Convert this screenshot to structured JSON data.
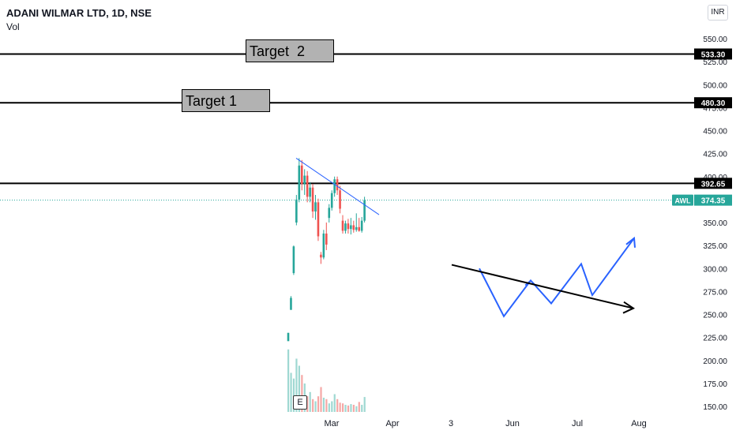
{
  "header": {
    "title": "ADANI WILMAR LTD, 1D, NSE",
    "volume_label": "Vol",
    "currency_button": "INR"
  },
  "annotations": {
    "target1_label": "Target 1",
    "target2_label": "Target  2",
    "earnings_badge": "E"
  },
  "colors": {
    "up": "#26a69a",
    "down": "#ef5350",
    "trendline": "#2962ff",
    "projection": "#2962ff",
    "level_line": "#000000",
    "current_price": "#26a69a"
  },
  "chart_data": {
    "type": "candlestick",
    "symbol": "AWL",
    "ylim": [
      150,
      550
    ],
    "y_ticks": [
      "550.00",
      "525.00",
      "500.00",
      "475.00",
      "450.00",
      "425.00",
      "400.00",
      "375.00",
      "350.00",
      "325.00",
      "300.00",
      "275.00",
      "250.00",
      "225.00",
      "200.00",
      "175.00",
      "150.00"
    ],
    "x_ticks": [
      "Mar",
      "Apr",
      "3",
      "Jun",
      "Jul",
      "Aug"
    ],
    "horizontal_levels": [
      {
        "price": 533.3,
        "label": "533.30"
      },
      {
        "price": 480.3,
        "label": "480.30"
      },
      {
        "price": 392.65,
        "label": "392.65"
      }
    ],
    "last_price": {
      "price": 374.35,
      "label": "374.35",
      "ticker_tag": "AWL"
    },
    "candles": [
      {
        "o": 221,
        "h": 230,
        "l": 221,
        "c": 230
      },
      {
        "o": 255,
        "h": 270,
        "l": 255,
        "c": 268
      },
      {
        "o": 295,
        "h": 325,
        "l": 293,
        "c": 324
      },
      {
        "o": 350,
        "h": 380,
        "l": 347,
        "c": 375
      },
      {
        "o": 375,
        "h": 420,
        "l": 372,
        "c": 412
      },
      {
        "o": 412,
        "h": 418,
        "l": 385,
        "c": 392
      },
      {
        "o": 392,
        "h": 408,
        "l": 380,
        "c": 401
      },
      {
        "o": 401,
        "h": 406,
        "l": 372,
        "c": 378
      },
      {
        "o": 378,
        "h": 394,
        "l": 372,
        "c": 388
      },
      {
        "o": 388,
        "h": 392,
        "l": 355,
        "c": 362
      },
      {
        "o": 362,
        "h": 380,
        "l": 353,
        "c": 372
      },
      {
        "o": 372,
        "h": 376,
        "l": 330,
        "c": 335
      },
      {
        "o": 315,
        "h": 318,
        "l": 305,
        "c": 312
      },
      {
        "o": 312,
        "h": 342,
        "l": 310,
        "c": 338
      },
      {
        "o": 338,
        "h": 350,
        "l": 320,
        "c": 326
      },
      {
        "o": 355,
        "h": 370,
        "l": 350,
        "c": 366
      },
      {
        "o": 366,
        "h": 385,
        "l": 363,
        "c": 382
      },
      {
        "o": 382,
        "h": 400,
        "l": 378,
        "c": 397
      },
      {
        "o": 397,
        "h": 400,
        "l": 380,
        "c": 385
      },
      {
        "o": 385,
        "h": 390,
        "l": 360,
        "c": 365
      },
      {
        "o": 352,
        "h": 358,
        "l": 338,
        "c": 341
      },
      {
        "o": 341,
        "h": 352,
        "l": 338,
        "c": 349
      },
      {
        "o": 349,
        "h": 354,
        "l": 338,
        "c": 343
      },
      {
        "o": 343,
        "h": 355,
        "l": 337,
        "c": 347
      },
      {
        "o": 347,
        "h": 352,
        "l": 339,
        "c": 342
      },
      {
        "o": 342,
        "h": 360,
        "l": 340,
        "c": 345
      },
      {
        "o": 345,
        "h": 355,
        "l": 340,
        "c": 341
      },
      {
        "o": 341,
        "h": 356,
        "l": 339,
        "c": 352
      },
      {
        "o": 352,
        "h": 378,
        "l": 350,
        "c": 374
      }
    ],
    "volume_relative": [
      0.88,
      0.55,
      0.47,
      0.75,
      0.65,
      0.52,
      0.4,
      0.22,
      0.28,
      0.18,
      0.15,
      0.22,
      0.35,
      0.2,
      0.18,
      0.12,
      0.15,
      0.25,
      0.18,
      0.13,
      0.12,
      0.1,
      0.09,
      0.11,
      0.1,
      0.08,
      0.14,
      0.1,
      0.21
    ],
    "volume_up": [
      true,
      true,
      true,
      true,
      true,
      false,
      true,
      false,
      true,
      false,
      true,
      false,
      false,
      true,
      false,
      true,
      true,
      true,
      false,
      false,
      false,
      true,
      false,
      true,
      false,
      true,
      false,
      true,
      true
    ],
    "trendline": [
      {
        "price": 420
      },
      {
        "price": 380
      }
    ],
    "projection_path": [
      300,
      248,
      287,
      262,
      305,
      271,
      333
    ],
    "projection_trend": [
      304,
      261
    ]
  }
}
